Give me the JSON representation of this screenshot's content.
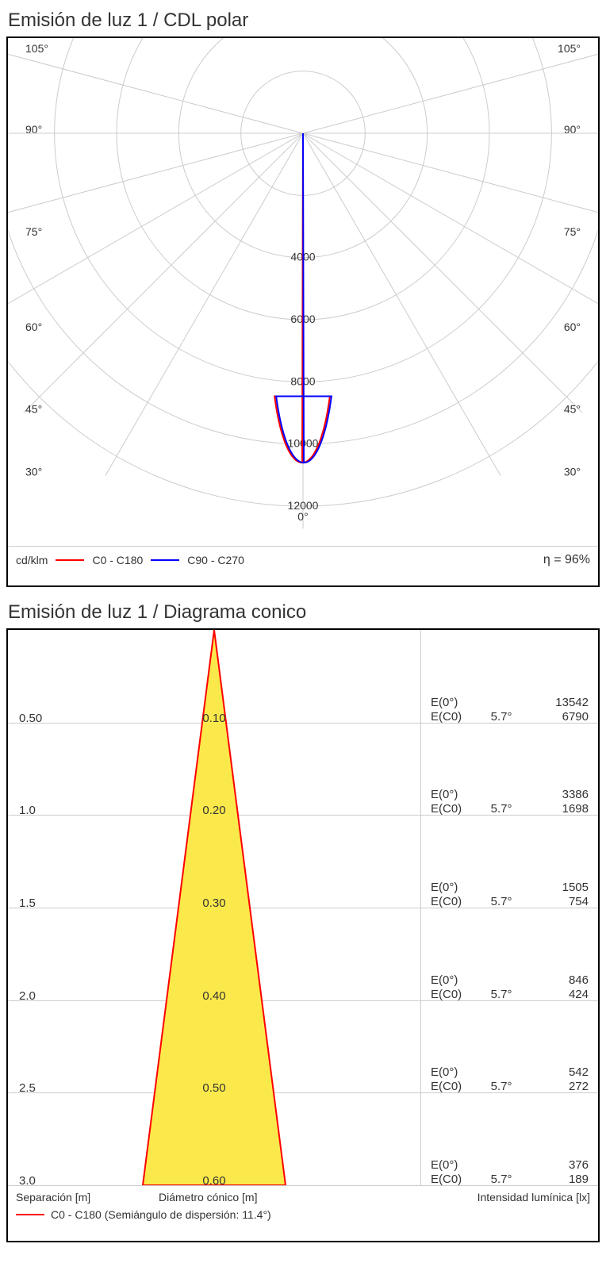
{
  "polar": {
    "title": "Emisión de luz 1 / CDL polar",
    "unit_label": "cd/klm",
    "efficiency_label": "η = 96%",
    "series": [
      {
        "label": "C0 - C180",
        "color": "#ff0000"
      },
      {
        "label": "C90 - C270",
        "color": "#0000ff"
      }
    ],
    "angle_ticks_deg": [
      30,
      45,
      60,
      75,
      90,
      105
    ],
    "rings": [
      2000,
      4000,
      6000,
      8000,
      10000,
      12000
    ],
    "ring_labels": [
      4000,
      6000,
      8000,
      10000,
      12000
    ],
    "max_radius_value": 12000,
    "grid_color": "#cccccc",
    "curve_color_c0": "#ff0000",
    "curve_color_c90": "#0000ff",
    "curve_apex_value": 10600,
    "curve_half_width_deg": 6
  },
  "cone": {
    "title": "Emisión de luz 1 / Diagrama conico",
    "axis_left": "Separación [m]",
    "axis_mid": "Diámetro cónico [m]",
    "axis_right": "Intensidad lumínica [lx]",
    "legend_label": "C0 - C180 (Semiángulo de dispersión: 11.4°)",
    "legend_color": "#ff0000",
    "fill_color": "#fbe94b",
    "stroke_color": "#ff0000",
    "half_angle_deg": 11.4,
    "rows": [
      {
        "sep": "0.50",
        "dia": "0.10",
        "e0_label": "E(0°)",
        "e0": "13542",
        "ec_label": "E(C0)",
        "angle": "5.7°",
        "ec": "6790"
      },
      {
        "sep": "1.0",
        "dia": "0.20",
        "e0_label": "E(0°)",
        "e0": "3386",
        "ec_label": "E(C0)",
        "angle": "5.7°",
        "ec": "1698"
      },
      {
        "sep": "1.5",
        "dia": "0.30",
        "e0_label": "E(0°)",
        "e0": "1505",
        "ec_label": "E(C0)",
        "angle": "5.7°",
        "ec": "754"
      },
      {
        "sep": "2.0",
        "dia": "0.40",
        "e0_label": "E(0°)",
        "e0": "846",
        "ec_label": "E(C0)",
        "angle": "5.7°",
        "ec": "424"
      },
      {
        "sep": "2.5",
        "dia": "0.50",
        "e0_label": "E(0°)",
        "e0": "542",
        "ec_label": "E(C0)",
        "angle": "5.7°",
        "ec": "272"
      },
      {
        "sep": "3.0",
        "dia": "0.60",
        "e0_label": "E(0°)",
        "e0": "376",
        "ec_label": "E(C0)",
        "angle": "5.7°",
        "ec": "189"
      }
    ]
  }
}
